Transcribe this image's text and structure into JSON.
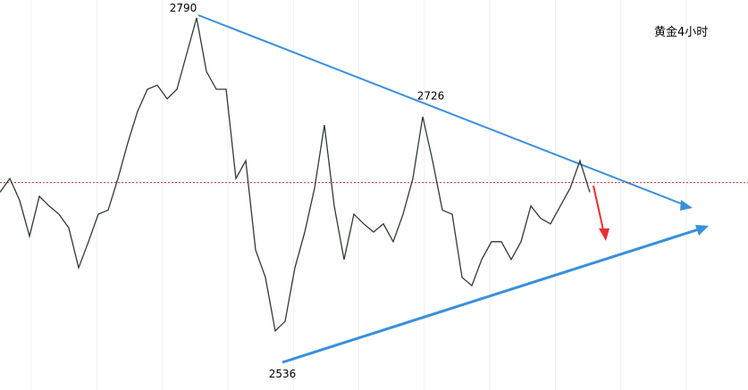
{
  "chart_data": {
    "type": "line",
    "title": "黄金4小时",
    "series": [
      {
        "color": "#2f3b2f",
        "values": [
          2661,
          2671,
          2655,
          2629,
          2658,
          2651,
          2645,
          2635,
          2606,
          2625,
          2645,
          2648,
          2671,
          2697,
          2720,
          2736,
          2739,
          2729,
          2736,
          2762,
          2788,
          2749,
          2736,
          2736,
          2671,
          2684,
          2619,
          2599,
          2560,
          2567,
          2606,
          2632,
          2664,
          2710,
          2651,
          2612,
          2645,
          2638,
          2632,
          2638,
          2625,
          2645,
          2671,
          2716,
          2684,
          2648,
          2645,
          2599,
          2593,
          2612,
          2625,
          2625,
          2612,
          2625,
          2651,
          2642,
          2638,
          2651,
          2664,
          2684,
          2661
        ]
      }
    ],
    "ylim": [
      2517,
      2801
    ],
    "reference_line": {
      "value": 2668,
      "color": "#d03030"
    },
    "annotations": [
      2790,
      2726,
      2536
    ]
  }
}
